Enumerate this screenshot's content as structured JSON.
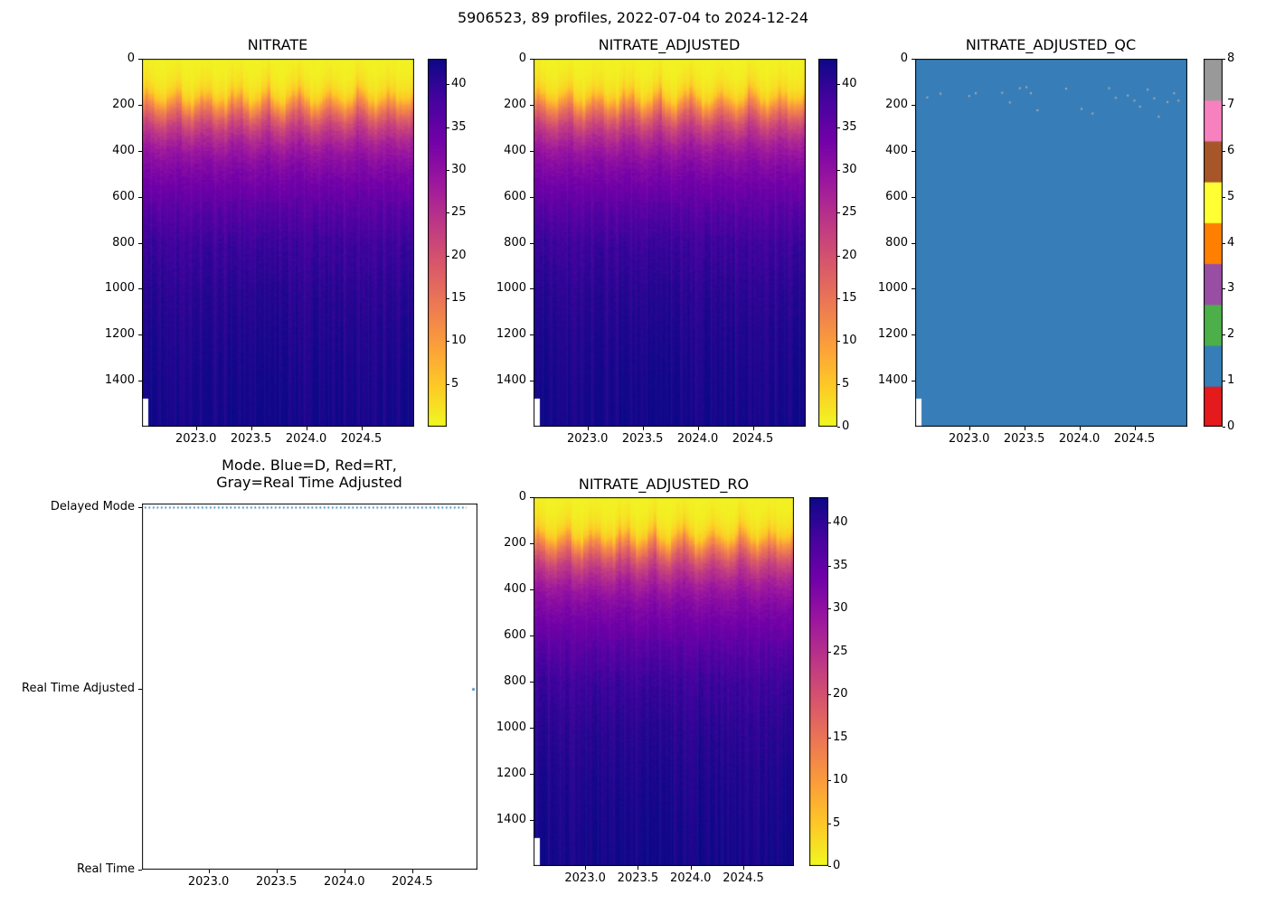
{
  "figure": {
    "title": "5906523, 89 profiles, 2022-07-04 to 2024-12-24"
  },
  "chart_data": [
    {
      "type": "heatmap",
      "title": "NITRATE",
      "n_profiles": 89,
      "x_range": [
        2022.51,
        2024.98
      ],
      "x_ticks": [
        2023.0,
        2023.5,
        2024.0,
        2024.5
      ],
      "depth_range": [
        0,
        1600
      ],
      "y_ticks": [
        0,
        200,
        400,
        600,
        800,
        1000,
        1200,
        1400
      ],
      "value_range": [
        0,
        43
      ],
      "colorbar_ticks": [
        5,
        10,
        15,
        20,
        25,
        30,
        35,
        40
      ],
      "first_profile_max_depth": 1480,
      "profile": {
        "depths": [
          0,
          60,
          120,
          160,
          200,
          250,
          300,
          350,
          400,
          450,
          500,
          600,
          700,
          800,
          1000,
          1200,
          1400,
          1600
        ],
        "values": [
          0.8,
          1.2,
          2.6,
          5,
          11,
          17.5,
          22.5,
          26,
          28.8,
          30.8,
          32.3,
          34.8,
          37,
          38.8,
          40.4,
          41.3,
          41.9,
          42.3
        ]
      }
    },
    {
      "type": "heatmap",
      "title": "NITRATE_ADJUSTED",
      "n_profiles": 89,
      "x_range": [
        2022.51,
        2024.98
      ],
      "x_ticks": [
        2023.0,
        2023.5,
        2024.0,
        2024.5
      ],
      "depth_range": [
        0,
        1600
      ],
      "y_ticks": [
        0,
        200,
        400,
        600,
        800,
        1000,
        1200,
        1400
      ],
      "value_range": [
        0,
        43
      ],
      "colorbar_ticks": [
        0,
        5,
        10,
        15,
        20,
        25,
        30,
        35,
        40
      ],
      "first_profile_max_depth": 1480,
      "profile": {
        "depths": [
          0,
          60,
          120,
          160,
          200,
          250,
          300,
          350,
          400,
          450,
          500,
          600,
          700,
          800,
          1000,
          1200,
          1400,
          1600
        ],
        "values": [
          0.8,
          1.2,
          2.6,
          5,
          11,
          17.5,
          22.5,
          26,
          28.8,
          30.8,
          32.3,
          34.8,
          37,
          38.8,
          40.4,
          41.3,
          41.9,
          42.3
        ]
      }
    },
    {
      "type": "heatmap",
      "title": "NITRATE_ADJUSTED_QC",
      "n_profiles": 89,
      "x_range": [
        2022.51,
        2024.98
      ],
      "x_ticks": [
        2023.0,
        2023.5,
        2024.0,
        2024.5
      ],
      "depth_range": [
        0,
        1600
      ],
      "y_ticks": [
        0,
        200,
        400,
        600,
        800,
        1000,
        1200,
        1400
      ],
      "fill_qc": 1,
      "flag_qc": 8,
      "colorbar_ticks": [
        0,
        1,
        2,
        3,
        4,
        5,
        6,
        7,
        8
      ],
      "first_profile_max_depth": 1480,
      "qc_colors": {
        "0": "#e41a1c",
        "1": "#377eb8",
        "2": "#4daf4a",
        "3": "#984ea3",
        "4": "#ff7f00",
        "5": "#ffff33",
        "6": "#a65628",
        "7": "#f781bf",
        "8": "#999999"
      },
      "flag_color": "#b3aba6",
      "flagged_points": [
        {
          "x": 2022.62,
          "depth": 168
        },
        {
          "x": 2022.74,
          "depth": 152
        },
        {
          "x": 2023.0,
          "depth": 162
        },
        {
          "x": 2023.06,
          "depth": 150
        },
        {
          "x": 2023.3,
          "depth": 148
        },
        {
          "x": 2023.37,
          "depth": 190
        },
        {
          "x": 2023.46,
          "depth": 128
        },
        {
          "x": 2023.52,
          "depth": 124
        },
        {
          "x": 2023.56,
          "depth": 150
        },
        {
          "x": 2023.62,
          "depth": 224
        },
        {
          "x": 2023.88,
          "depth": 130
        },
        {
          "x": 2024.02,
          "depth": 218
        },
        {
          "x": 2024.12,
          "depth": 238
        },
        {
          "x": 2024.27,
          "depth": 128
        },
        {
          "x": 2024.33,
          "depth": 170
        },
        {
          "x": 2024.44,
          "depth": 160
        },
        {
          "x": 2024.5,
          "depth": 182
        },
        {
          "x": 2024.55,
          "depth": 208
        },
        {
          "x": 2024.62,
          "depth": 134
        },
        {
          "x": 2024.68,
          "depth": 172
        },
        {
          "x": 2024.72,
          "depth": 252
        },
        {
          "x": 2024.8,
          "depth": 188
        },
        {
          "x": 2024.86,
          "depth": 150
        },
        {
          "x": 2024.9,
          "depth": 182
        }
      ]
    },
    {
      "type": "scatter",
      "title": "Mode. Blue=D, Red=RT,\nGray=Real Time Adjusted",
      "x_range": [
        2022.51,
        2024.98
      ],
      "x_ticks": [
        2023.0,
        2023.5,
        2024.0,
        2024.5
      ],
      "y_categories": [
        "Delayed Mode",
        "Real Time Adjusted",
        "Real Time"
      ],
      "delayed_mode_span": [
        2022.53,
        2024.9
      ],
      "real_time_adjusted_points": [
        2024.95
      ],
      "line_color": "#1f77b4"
    },
    {
      "type": "heatmap",
      "title": "NITRATE_ADJUSTED_RO",
      "n_profiles": 89,
      "x_range": [
        2022.51,
        2024.98
      ],
      "x_ticks": [
        2023.0,
        2023.5,
        2024.0,
        2024.5
      ],
      "depth_range": [
        0,
        1600
      ],
      "y_ticks": [
        0,
        200,
        400,
        600,
        800,
        1000,
        1200,
        1400
      ],
      "value_range": [
        0,
        43
      ],
      "colorbar_ticks": [
        0,
        5,
        10,
        15,
        20,
        25,
        30,
        35,
        40
      ],
      "first_profile_max_depth": 1480,
      "profile": {
        "depths": [
          0,
          60,
          120,
          160,
          200,
          250,
          300,
          350,
          400,
          450,
          500,
          600,
          700,
          800,
          1000,
          1200,
          1400,
          1600
        ],
        "values": [
          0.8,
          1.2,
          2.6,
          5,
          11,
          17.5,
          22.5,
          26,
          28.8,
          30.8,
          32.3,
          34.8,
          37,
          38.8,
          40.4,
          41.3,
          41.9,
          42.3
        ]
      }
    }
  ]
}
